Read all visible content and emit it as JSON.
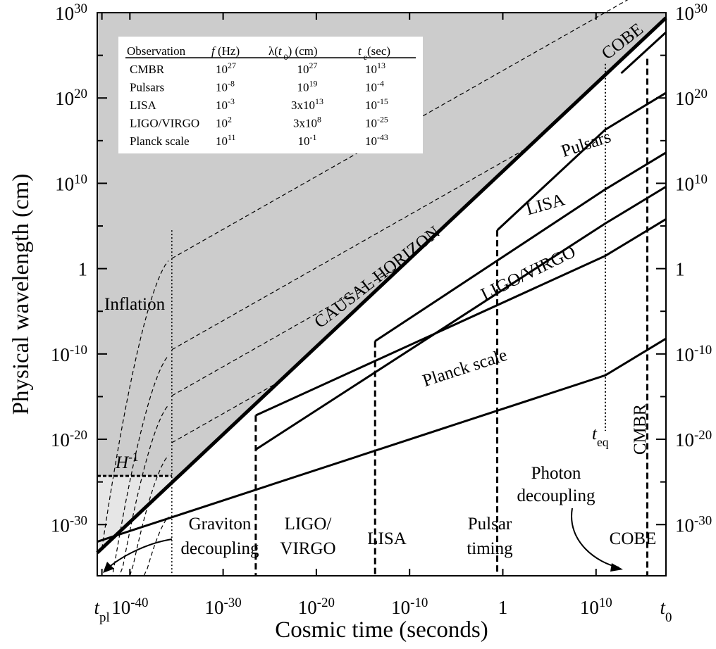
{
  "chart_data": {
    "type": "line",
    "xlabel": "Cosmic time (seconds)",
    "ylabel": "Physical wavelength (cm)",
    "x_scale": "log10",
    "y_scale": "log10",
    "xlim": [
      -43.5,
      17.5
    ],
    "ylim": [
      -36,
      30
    ],
    "x_ticks": [
      {
        "exp": -43,
        "base": "t",
        "sub": "pl"
      },
      {
        "exp": -40,
        "base": "10",
        "sup": "-40"
      },
      {
        "exp": -30,
        "base": "10",
        "sup": "-30"
      },
      {
        "exp": -20,
        "base": "10",
        "sup": "-20"
      },
      {
        "exp": -10,
        "base": "10",
        "sup": "-10"
      },
      {
        "exp": 0,
        "base": "1",
        "sup": ""
      },
      {
        "exp": 10,
        "base": "10",
        "sup": "10"
      },
      {
        "exp": 17.5,
        "base": "t",
        "sub": "0"
      }
    ],
    "y_ticks": [
      {
        "exp": 30,
        "base": "10",
        "sup": "30"
      },
      {
        "exp": 20,
        "base": "10",
        "sup": "20"
      },
      {
        "exp": 10,
        "base": "10",
        "sup": "10"
      },
      {
        "exp": 0,
        "base": "1",
        "sup": ""
      },
      {
        "exp": -10,
        "base": "10",
        "sup": "-10"
      },
      {
        "exp": -20,
        "base": "10",
        "sup": "-20"
      },
      {
        "exp": -30,
        "base": "10",
        "sup": "-30"
      }
    ],
    "causal_horizon": {
      "label": "CAUSAL  HORIZON",
      "x": [
        -43.5,
        17.5
      ],
      "y": [
        -33.3,
        29.4
      ]
    },
    "series": [
      {
        "name": "COBE",
        "x": [
          12.7,
          17.5
        ],
        "y": [
          22.9,
          27.7
        ]
      },
      {
        "name": "Pulsars",
        "x": [
          -0.6,
          11,
          17.5
        ],
        "y": [
          4.5,
          16.3,
          20.6
        ]
      },
      {
        "name": "LISA",
        "x": [
          -13.7,
          11,
          17.5
        ],
        "y": [
          -8.5,
          9.3,
          13.6
        ]
      },
      {
        "name": "LIGO/VIRGO",
        "x": [
          -26.5,
          11,
          17.5
        ],
        "y": [
          -21.2,
          5.3,
          9.6
        ]
      },
      {
        "name": "Planck scale",
        "x": [
          -43.5,
          11,
          17.5
        ],
        "y": [
          -32,
          6.5,
          10.8
        ],
        "label_only": true
      }
    ],
    "lines": {
      "planck": {
        "x": [
          -43.5,
          11,
          17.5
        ],
        "y": [
          -32,
          -12.5,
          -8.2
        ]
      },
      "ligo": {
        "x": [
          -26.5,
          11,
          17.5
        ],
        "y": [
          -17.2,
          1.5,
          5.8
        ]
      }
    },
    "inflation": {
      "label": "Inflation",
      "hubble_label": "H",
      "hubble_sup": "-1",
      "hubble_y": -24.3,
      "end_time_exp": -35.5
    },
    "region_labels": [
      {
        "line1": "Graviton",
        "line2": "decoupling"
      },
      {
        "line1": "LIGO/",
        "line2": "VIRGO"
      },
      {
        "line1": "LISA",
        "line2": ""
      },
      {
        "line1": "Pulsar",
        "line2": "timing"
      },
      {
        "line1": "COBE",
        "line2": ""
      }
    ],
    "t_eq": {
      "base": "t",
      "sub": "eq",
      "exp": 11
    },
    "cmbr_label": "CMBR",
    "photon_decoupling": {
      "line1": "Photon",
      "line2": "decoupling"
    },
    "cobe_label": "COBE",
    "table": {
      "headers": [
        "Observation",
        "f",
        "(Hz)",
        "λ(",
        "t",
        "0",
        ") (cm)",
        "t",
        "e",
        "(sec)"
      ],
      "rows": [
        {
          "obs": "CMBR",
          "f": "10",
          "f_sup": "27",
          "lam": "10",
          "lam_sup": "27",
          "t": "10",
          "t_sup": "13"
        },
        {
          "obs": "Pulsars",
          "f": "10",
          "f_sup": "-8",
          "lam": "10",
          "lam_sup": "19",
          "t": "10",
          "t_sup": "-4"
        },
        {
          "obs": "LISA",
          "f": "10",
          "f_sup": "-3",
          "lam": "3x10",
          "lam_sup": "13",
          "t": "10",
          "t_sup": "-15"
        },
        {
          "obs": "LIGO/VIRGO",
          "f": "10",
          "f_sup": "2",
          "lam": "3x10",
          "lam_sup": "8",
          "t": "10",
          "t_sup": "-25"
        },
        {
          "obs": "Planck scale",
          "f": "10",
          "f_sup": "11",
          "lam": "10",
          "lam_sup": "-1",
          "t": "10",
          "t_sup": "-43"
        }
      ]
    },
    "colors": {
      "shade": "#cccccc",
      "shade_light": "#e6e6e6",
      "line": "#000000"
    }
  }
}
